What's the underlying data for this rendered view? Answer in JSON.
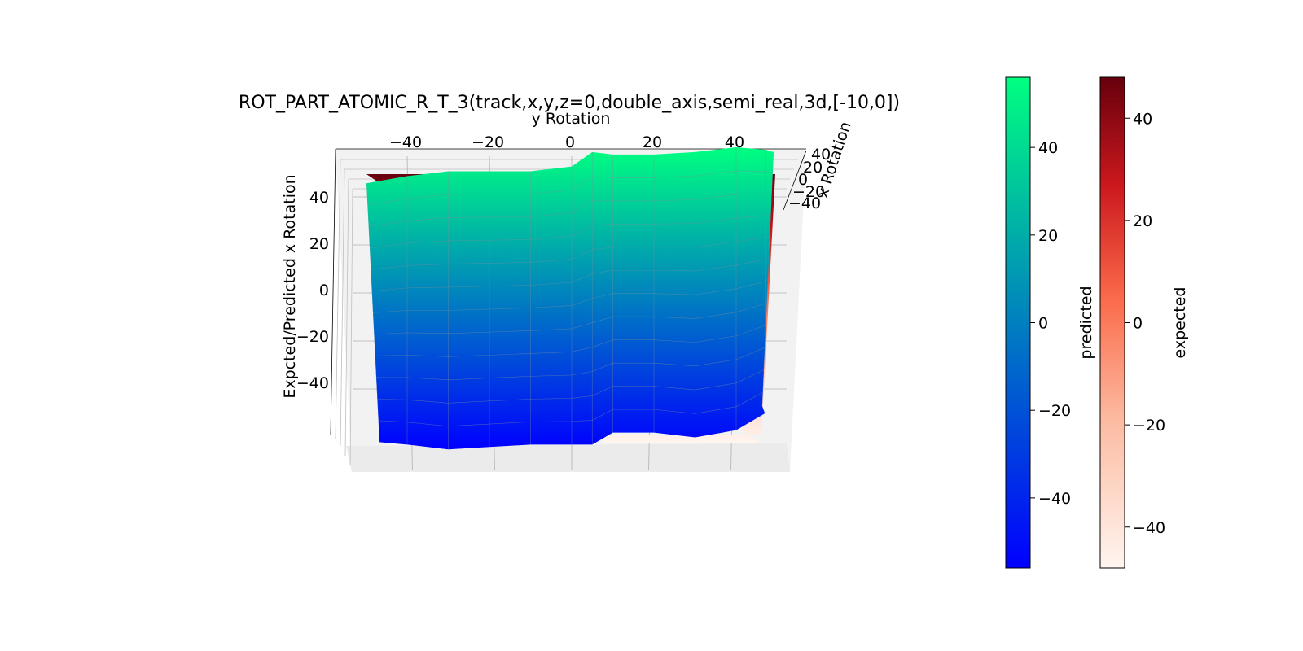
{
  "chart_data": {
    "type": "surface3d",
    "title": "ROT_PART_ATOMIC_R_T_3(track,x,y,z=0,double_axis,semi_real,3d,[-10,0])",
    "xlabel": "x Rotation",
    "ylabel": "y Rotation",
    "zlabel": "Expcted/Predicted x Rotation",
    "y_ticks": [
      "−40",
      "−20",
      "0",
      "20",
      "40"
    ],
    "x_ticks": [
      "40",
      "20",
      "0",
      "−20",
      "−40"
    ],
    "z_ticks": [
      "40",
      "20",
      "0",
      "−20",
      "−40"
    ],
    "ylim": [
      -50,
      50
    ],
    "zlim": [
      -50,
      50
    ],
    "grid": true,
    "y": [
      -50,
      -40,
      -30,
      -20,
      -10,
      0,
      5,
      10,
      20,
      30,
      40,
      47,
      50
    ],
    "series": [
      {
        "name": "predicted",
        "colormap": "winter",
        "top_z": [
          45,
          48,
          50,
          50,
          50,
          52,
          58,
          57,
          57,
          58,
          60,
          59,
          58
        ],
        "bottom_z": [
          -52,
          -53,
          -55,
          -54,
          -53,
          -53,
          -53,
          -48,
          -48,
          -50,
          -47,
          -40,
          -37
        ]
      },
      {
        "name": "expected",
        "colormap": "Reds",
        "top_z": [
          52,
          52,
          52,
          52,
          52,
          52,
          52,
          52,
          52,
          52,
          52,
          52,
          52
        ],
        "bottom_z": [
          -48,
          -48,
          -48,
          -48,
          -48,
          -48,
          -48,
          -48,
          -48,
          -48,
          -48,
          -48,
          -48
        ]
      }
    ],
    "colorbars": [
      {
        "label": "predicted",
        "ticks": [
          "40",
          "20",
          "0",
          "−20",
          "−40"
        ],
        "range": [
          -56,
          56
        ],
        "colors": [
          "#0000ff",
          "#00ff80"
        ]
      },
      {
        "label": "expected",
        "ticks": [
          "40",
          "20",
          "0",
          "−20",
          "−40"
        ],
        "range": [
          -48,
          48
        ],
        "colors": [
          "#fff5f0",
          "#fcbba1",
          "#fb6a4a",
          "#cb181d",
          "#67000d"
        ]
      }
    ]
  }
}
